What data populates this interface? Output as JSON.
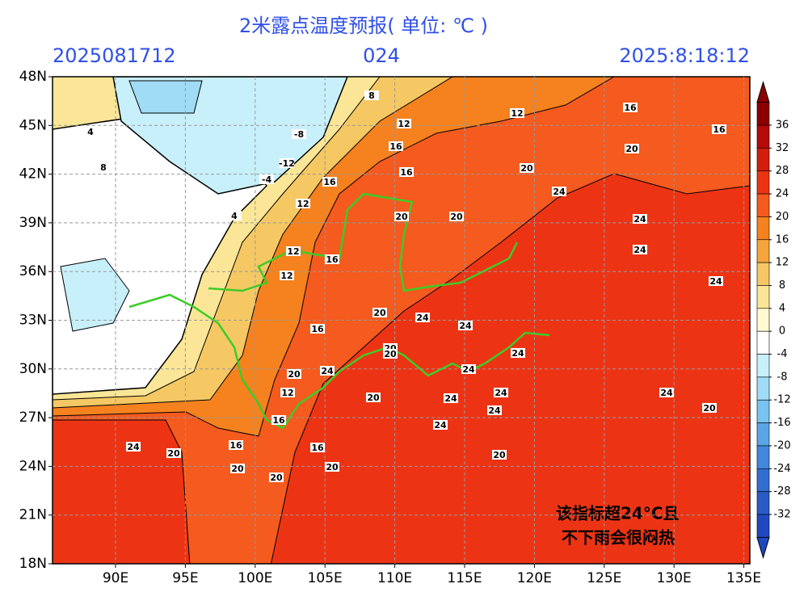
{
  "title": "2米露点温度预报( 单位: ℃ )",
  "init_time": "2025081712",
  "lead_time": "024",
  "valid_time": "2025:8:18:12",
  "lat_labels": [
    "48N",
    "45N",
    "42N",
    "39N",
    "36N",
    "33N",
    "30N",
    "27N",
    "24N",
    "21N",
    "18N"
  ],
  "lon_labels": [
    "90E",
    "95E",
    "100E",
    "105E",
    "110E",
    "115E",
    "120E",
    "125E",
    "130E",
    "135E"
  ],
  "colorbar": {
    "ticks": [
      36,
      32,
      28,
      24,
      20,
      16,
      12,
      8,
      4,
      0,
      -4,
      -8,
      -12,
      -16,
      -20,
      -24,
      -28,
      -32
    ],
    "colors": [
      "#8c0000",
      "#b40a0a",
      "#d21e0a",
      "#ec3414",
      "#f55a1e",
      "#f5821e",
      "#f5a53c",
      "#f5c864",
      "#fae696",
      "#fffad2",
      "#ffffff",
      "#c8f0fa",
      "#a0dcf5",
      "#78c3f0",
      "#5aa5e6",
      "#4187dc",
      "#326ed2",
      "#2a5ac8",
      "#2048c0"
    ]
  },
  "annotation": [
    "该指标超24°C且",
    "不下雨会很闷热"
  ],
  "contour_labels": [
    8,
    12,
    16,
    16,
    20,
    20,
    16,
    4,
    8,
    -8,
    -12,
    -4,
    4,
    12,
    16,
    12,
    16,
    20,
    20,
    24,
    24,
    24,
    24,
    20,
    16,
    12,
    20,
    24,
    24,
    20,
    20,
    24,
    24,
    24,
    16,
    12,
    16,
    20,
    24,
    20,
    16,
    20,
    20,
    20,
    24,
    24,
    24,
    24,
    24,
    20,
    20,
    16,
    20,
    12
  ]
}
